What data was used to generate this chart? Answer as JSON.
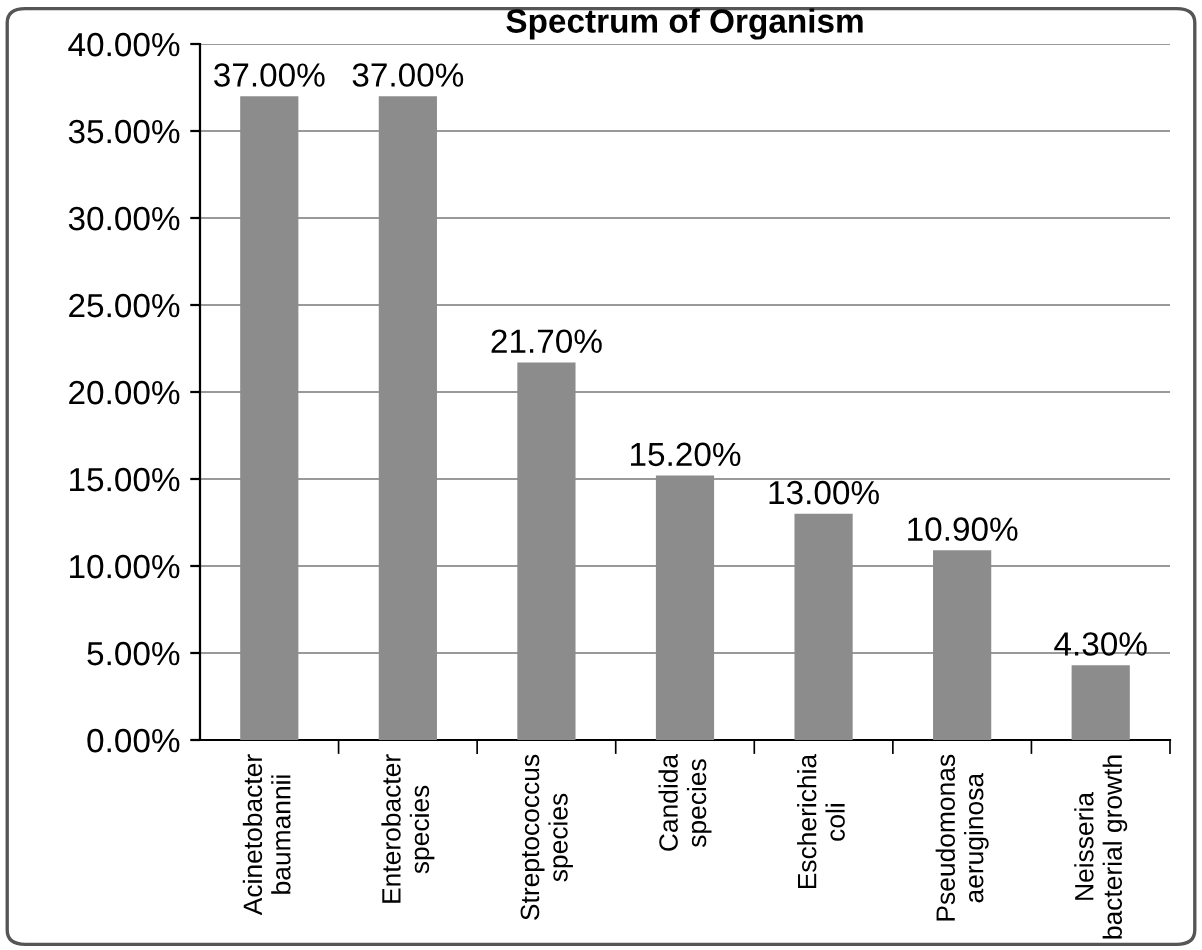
{
  "chart_data": {
    "type": "bar",
    "title": "Spectrum of Organism",
    "categories": [
      "Acinetobacter\nbaumannii",
      "Enterobacter\nspecies",
      "Streptococcus\nspecies",
      "Candida\nspecies",
      "Escherichia\ncoli",
      "Pseudomonas\naeruginosa",
      "Neisseria\nbacterial growth"
    ],
    "values": [
      37,
      37,
      21.7,
      15.2,
      13,
      10.9,
      4.3
    ],
    "value_labels": [
      "37.00%",
      "37.00%",
      "21.70%",
      "15.20%",
      "13.00%",
      "10.90%",
      "4.30%"
    ],
    "color": "#8c8c8c",
    "ylim": [
      0,
      40
    ],
    "yticks": [
      {
        "value": 0,
        "label": "0.00%"
      },
      {
        "value": 5,
        "label": "5.00%"
      },
      {
        "value": 10,
        "label": "10.00%"
      },
      {
        "value": 15,
        "label": "15.00%"
      },
      {
        "value": 20,
        "label": "20.00%"
      },
      {
        "value": 25,
        "label": "25.00%"
      },
      {
        "value": 30,
        "label": "30.00%"
      },
      {
        "value": 35,
        "label": "35.00%"
      },
      {
        "value": 40,
        "label": "40.00%"
      }
    ],
    "grid": "y",
    "legend": false
  }
}
